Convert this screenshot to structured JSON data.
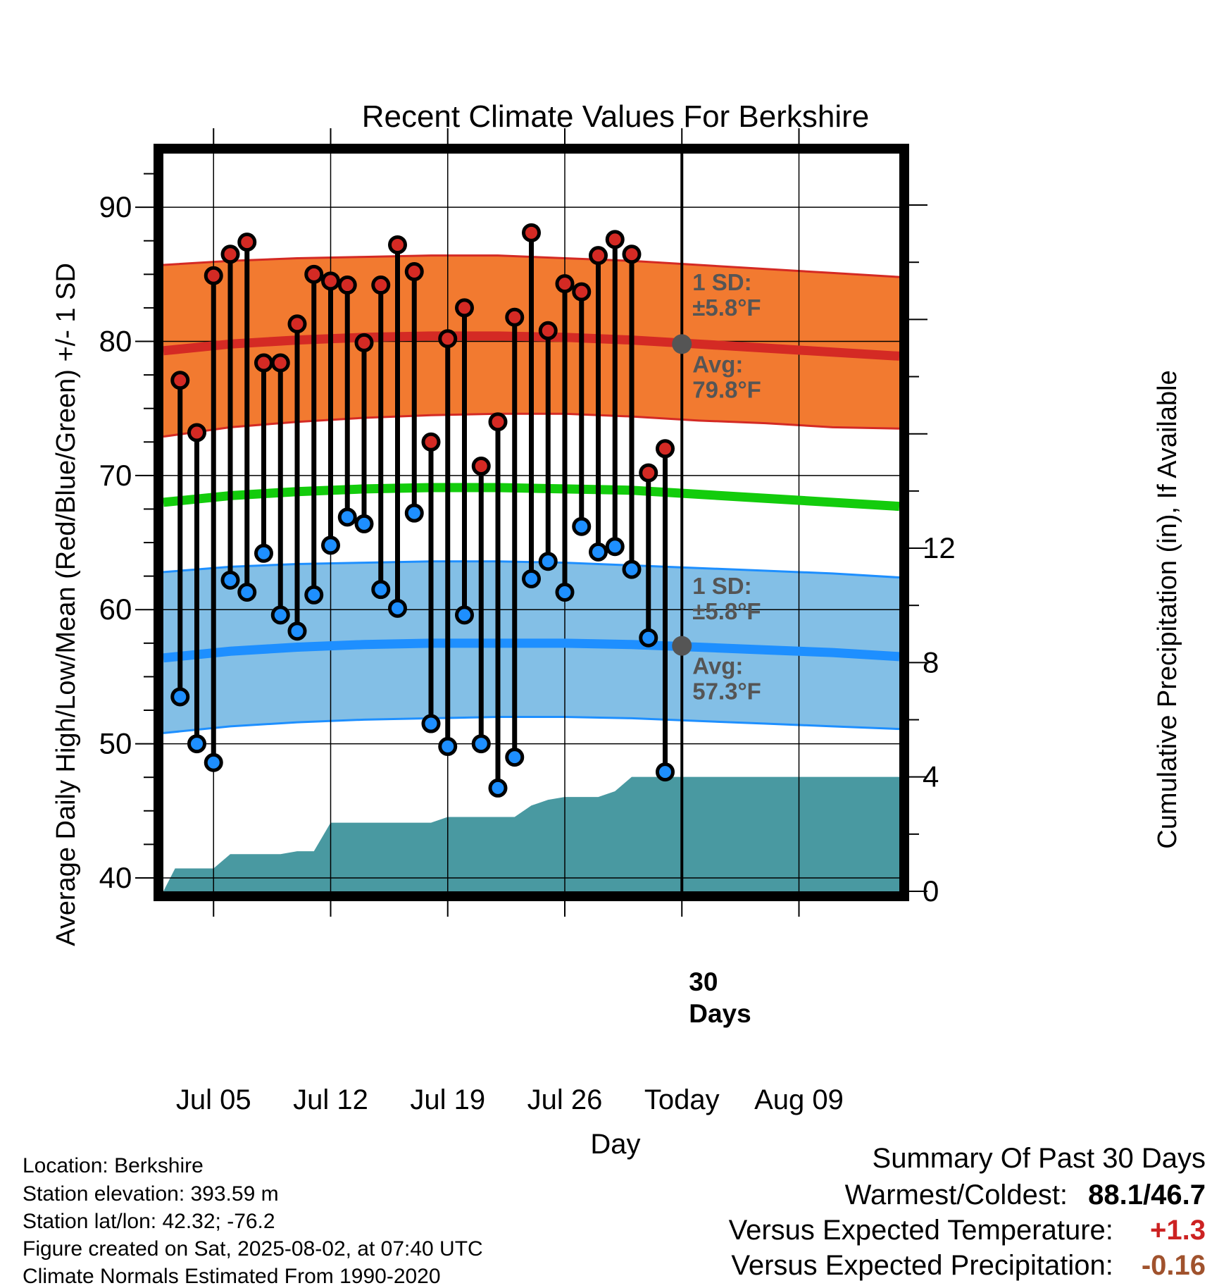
{
  "chart_data": {
    "type": "line",
    "title": "Recent Climate Values For Berkshire",
    "xlabel": "Day",
    "ylabel": "Average Daily High/Low/Mean (Red/Blue/Green) +/- 1 SD",
    "ylabel_right": "Cumulative Precipitation (in), If Available",
    "ylim": [
      39,
      94
    ],
    "ylim_right": [
      0,
      25.8
    ],
    "yticks": [
      "40",
      "50",
      "60",
      "70",
      "80",
      "90"
    ],
    "yticks_right": [
      "0",
      "4",
      "8",
      "12"
    ],
    "xlim_day": [
      0,
      44
    ],
    "xticks": [
      {
        "day": 3,
        "label": "Jul 05"
      },
      {
        "day": 10,
        "label": "Jul 12"
      },
      {
        "day": 17,
        "label": "Jul 19"
      },
      {
        "day": 24,
        "label": "Jul 26"
      },
      {
        "day": 31,
        "label": "Today"
      },
      {
        "day": 38,
        "label": "Aug 09"
      }
    ],
    "today_day": 31,
    "observed": {
      "day": [
        1,
        2,
        3,
        4,
        5,
        6,
        7,
        8,
        9,
        10,
        11,
        12,
        13,
        14,
        15,
        16,
        17,
        18,
        19,
        20,
        21,
        22,
        23,
        24,
        25,
        26,
        27,
        28,
        29,
        30
      ],
      "high": [
        77.1,
        73.2,
        84.9,
        86.5,
        87.4,
        78.4,
        78.4,
        81.3,
        85.0,
        84.5,
        84.2,
        79.9,
        84.2,
        87.2,
        85.2,
        72.5,
        80.2,
        82.5,
        70.7,
        74.0,
        81.8,
        88.1,
        80.8,
        84.3,
        83.7,
        86.4,
        87.6,
        86.5,
        70.2,
        72.0
      ],
      "low": [
        53.5,
        50.0,
        48.6,
        62.2,
        61.3,
        64.2,
        59.6,
        58.4,
        61.1,
        64.8,
        66.9,
        66.4,
        61.5,
        60.1,
        67.2,
        51.5,
        49.8,
        59.6,
        50.0,
        46.7,
        49.0,
        62.3,
        63.6,
        61.3,
        66.2,
        64.3,
        64.7,
        63.0,
        57.9,
        47.9
      ]
    },
    "normals": {
      "day": [
        0,
        4,
        8,
        12,
        16,
        20,
        24,
        28,
        32,
        36,
        40,
        44
      ],
      "high_avg": [
        79.3,
        79.8,
        80.1,
        80.3,
        80.4,
        80.4,
        80.3,
        80.1,
        79.8,
        79.5,
        79.2,
        78.9
      ],
      "high_upper": [
        85.7,
        86.0,
        86.2,
        86.3,
        86.4,
        86.4,
        86.2,
        86.0,
        85.7,
        85.4,
        85.1,
        84.8
      ],
      "high_lower": [
        72.9,
        73.6,
        74.0,
        74.3,
        74.5,
        74.6,
        74.6,
        74.4,
        74.1,
        73.9,
        73.6,
        73.5
      ],
      "mean_avg": [
        68.0,
        68.5,
        68.8,
        69.0,
        69.1,
        69.1,
        69.0,
        68.9,
        68.6,
        68.3,
        68.0,
        67.7
      ],
      "low_avg": [
        56.4,
        56.9,
        57.2,
        57.4,
        57.5,
        57.5,
        57.5,
        57.4,
        57.2,
        57.0,
        56.8,
        56.5
      ],
      "low_upper": [
        62.8,
        63.2,
        63.4,
        63.5,
        63.6,
        63.6,
        63.5,
        63.3,
        63.1,
        62.9,
        62.7,
        62.4
      ],
      "low_lower": [
        50.8,
        51.3,
        51.6,
        51.8,
        51.9,
        52.0,
        52.0,
        51.9,
        51.7,
        51.5,
        51.3,
        51.1
      ]
    },
    "precipitation_cumulative": {
      "day": [
        0,
        0.7,
        1,
        2,
        3,
        4,
        5,
        6,
        7,
        8,
        9,
        10,
        11,
        12,
        13,
        14,
        15,
        16,
        17,
        18,
        19,
        20,
        21,
        22,
        23,
        24,
        25,
        26,
        27,
        28,
        29,
        30,
        31,
        44
      ],
      "value": [
        0,
        0.8,
        0.8,
        0.8,
        0.8,
        1.3,
        1.3,
        1.3,
        1.3,
        1.4,
        1.4,
        2.4,
        2.4,
        2.4,
        2.4,
        2.4,
        2.4,
        2.4,
        2.6,
        2.6,
        2.6,
        2.6,
        2.6,
        3.0,
        3.2,
        3.3,
        3.3,
        3.3,
        3.5,
        4.0,
        4.0,
        4.0,
        4.0,
        4.0
      ]
    },
    "annotations": {
      "high_sd": [
        "1 SD:",
        "±5.8°F"
      ],
      "high_avg": [
        "Avg:",
        "79.8°F"
      ],
      "low_sd": [
        "1 SD:",
        "±5.8°F"
      ],
      "low_avg": [
        "Avg:",
        "57.3°F"
      ],
      "days": [
        "30",
        "Days"
      ]
    },
    "today_marker_values": {
      "high_avg": 79.8,
      "low_avg": 57.3
    },
    "colors": {
      "high_band": "#f27a30",
      "high_line": "#d42a24",
      "mean_line": "#13cc0c",
      "low_band": "#83bfe6",
      "low_line": "#1e8fff",
      "precip": "#4999a1",
      "high_dot": "#d42a24",
      "low_dot": "#1e8fff",
      "annotation": "#555555",
      "positive": "#cc2222",
      "negative": "#a0522d"
    }
  },
  "info": {
    "location": "Location: Berkshire",
    "elevation": "Station elevation: 393.59 m",
    "latlon": "Station lat/lon: 42.32; -76.2",
    "created": "Figure created on Sat, 2025-08-02, at 07:40 UTC",
    "normals": "Climate Normals Estimated From 1990-2020"
  },
  "summary": {
    "title": "Summary Of Past 30 Days",
    "warmest_coldest_label": "Warmest/Coldest:",
    "warmest_coldest_value": "88.1/46.7",
    "temp_label": "Versus Expected Temperature:",
    "temp_value": "+1.3",
    "precip_label": "Versus Expected Precipitation:",
    "precip_value": "-0.16"
  }
}
